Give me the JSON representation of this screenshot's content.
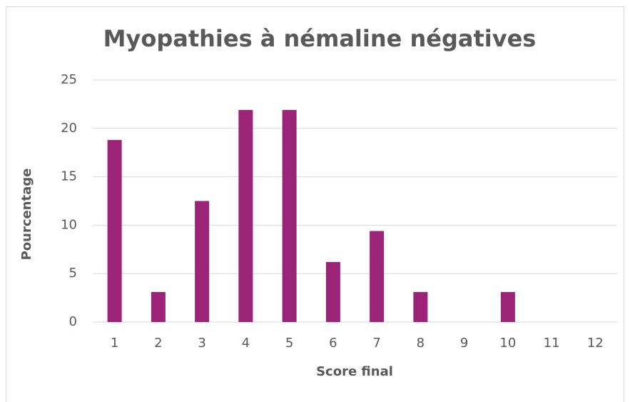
{
  "chart_data": {
    "type": "bar",
    "title": "Myopathies à némaline négatives",
    "x_label": "Score final",
    "y_label": "Pourcentage",
    "categories": [
      "1",
      "2",
      "3",
      "4",
      "5",
      "6",
      "7",
      "8",
      "9",
      "10",
      "11",
      "12"
    ],
    "values": [
      18.8,
      3.1,
      12.5,
      21.9,
      21.9,
      6.2,
      9.4,
      3.1,
      0,
      3.1,
      0,
      0
    ],
    "color": "#9b2479",
    "ylim": [
      0,
      25
    ],
    "yticks": [
      0,
      5,
      10,
      15,
      20,
      25
    ],
    "grid": true
  }
}
